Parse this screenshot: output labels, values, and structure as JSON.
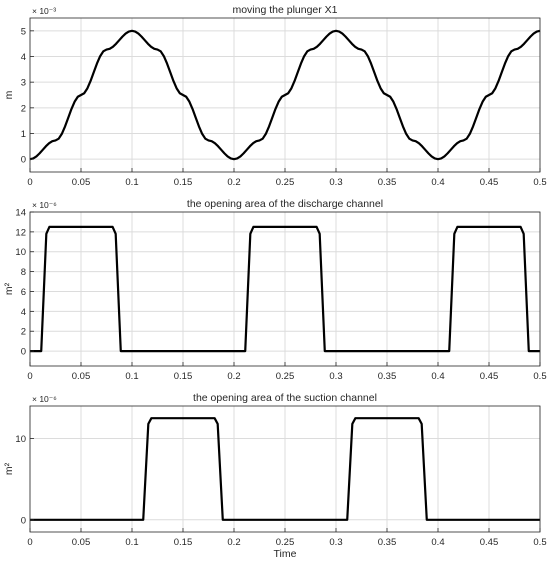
{
  "chart_data": [
    {
      "type": "line",
      "title": "moving the plunger X1",
      "xlabel": "",
      "ylabel": "m",
      "y_exponent": "× 10⁻³",
      "xlim": [
        0,
        0.5
      ],
      "ylim": [
        -0.5,
        5.5
      ],
      "grid": true,
      "xticks": [
        0,
        0.05,
        0.1,
        0.15,
        0.2,
        0.25,
        0.3,
        0.35,
        0.4,
        0.45,
        0.5
      ],
      "xtick_labels": [
        "0",
        "0.05",
        "0.1",
        "0.15",
        "0.2",
        "0.25",
        "0.3",
        "0.35",
        "0.4",
        "0.45",
        "0.5"
      ],
      "yticks": [
        0,
        1,
        2,
        3,
        4,
        5
      ],
      "ytick_labels": [
        "0",
        "1",
        "2",
        "3",
        "4",
        "5"
      ],
      "series": [
        {
          "x": [
            0,
            0.025,
            0.05,
            0.075,
            0.1,
            0.125,
            0.15,
            0.175,
            0.2,
            0.225,
            0.25,
            0.275,
            0.3,
            0.325,
            0.35,
            0.375,
            0.4,
            0.425,
            0.45,
            0.475,
            0.5
          ],
          "values": [
            0,
            0.73,
            2.5,
            4.27,
            5,
            4.27,
            2.5,
            0.73,
            0,
            0.73,
            2.5,
            4.27,
            5,
            4.27,
            2.5,
            0.73,
            0,
            0.73,
            2.5,
            4.27,
            5
          ]
        }
      ]
    },
    {
      "type": "line",
      "title": "the opening area of the discharge channel",
      "xlabel": "",
      "ylabel": "m²",
      "y_exponent": "× 10⁻⁶",
      "xlim": [
        0,
        0.5
      ],
      "ylim": [
        -1.5,
        14
      ],
      "grid": true,
      "xticks": [
        0,
        0.05,
        0.1,
        0.15,
        0.2,
        0.25,
        0.3,
        0.35,
        0.4,
        0.45,
        0.5
      ],
      "xtick_labels": [
        "0",
        "0.05",
        "0.1",
        "0.15",
        "0.2",
        "0.25",
        "0.3",
        "0.35",
        "0.4",
        "0.45",
        "0.5"
      ],
      "yticks": [
        0,
        2,
        4,
        6,
        8,
        10,
        12,
        14
      ],
      "ytick_labels": [
        "0",
        "2",
        "4",
        "6",
        "8",
        "10",
        "12",
        "14"
      ],
      "series": [
        {
          "x": [
            0,
            0.011,
            0.016,
            0.019,
            0.081,
            0.084,
            0.089,
            0.211,
            0.216,
            0.219,
            0.281,
            0.284,
            0.289,
            0.411,
            0.416,
            0.419,
            0.481,
            0.484,
            0.489,
            0.5
          ],
          "values": [
            0,
            0,
            11.8,
            12.5,
            12.5,
            11.8,
            0,
            0,
            11.8,
            12.5,
            12.5,
            11.8,
            0,
            0,
            11.8,
            12.5,
            12.5,
            11.8,
            0,
            0
          ]
        }
      ]
    },
    {
      "type": "line",
      "title": "the opening area of the suction channel",
      "xlabel": "Time",
      "ylabel": "m²",
      "y_exponent": "× 10⁻⁶",
      "xlim": [
        0,
        0.5
      ],
      "ylim": [
        -1.5,
        14
      ],
      "grid": true,
      "xticks": [
        0,
        0.05,
        0.1,
        0.15,
        0.2,
        0.25,
        0.3,
        0.35,
        0.4,
        0.45,
        0.5
      ],
      "xtick_labels": [
        "0",
        "0.05",
        "0.1",
        "0.15",
        "0.2",
        "0.25",
        "0.3",
        "0.35",
        "0.4",
        "0.45",
        "0.5"
      ],
      "yticks": [
        0,
        10
      ],
      "ytick_labels": [
        "0",
        "10"
      ],
      "series": [
        {
          "x": [
            0,
            0.111,
            0.116,
            0.119,
            0.181,
            0.184,
            0.189,
            0.311,
            0.316,
            0.319,
            0.381,
            0.384,
            0.389,
            0.5
          ],
          "values": [
            0,
            0,
            11.8,
            12.5,
            12.5,
            11.8,
            0,
            0,
            11.8,
            12.5,
            12.5,
            11.8,
            0,
            0
          ]
        }
      ]
    }
  ]
}
